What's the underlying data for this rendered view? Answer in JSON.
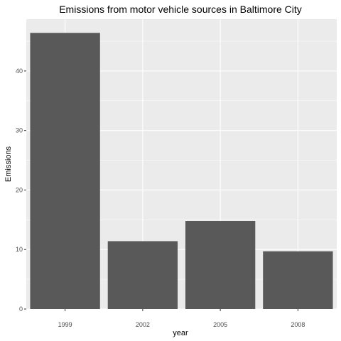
{
  "chart_data": {
    "type": "bar",
    "title": "Emissions from motor vehicle sources in Baltimore City",
    "xlabel": "year",
    "ylabel": "Emissions",
    "categories": [
      "1999",
      "2002",
      "2005",
      "2008"
    ],
    "values": [
      46.4,
      11.4,
      14.8,
      9.7
    ],
    "ylim": [
      0,
      48.7
    ],
    "yticks": [
      0,
      10,
      20,
      30,
      40
    ],
    "grid": true,
    "legend": "none"
  },
  "colors": {
    "panel_background": "#ebebeb",
    "grid_major": "#ffffff",
    "bar_fill": "#595959",
    "tick_text": "#4d4d4d",
    "tick_mark": "#333333"
  }
}
